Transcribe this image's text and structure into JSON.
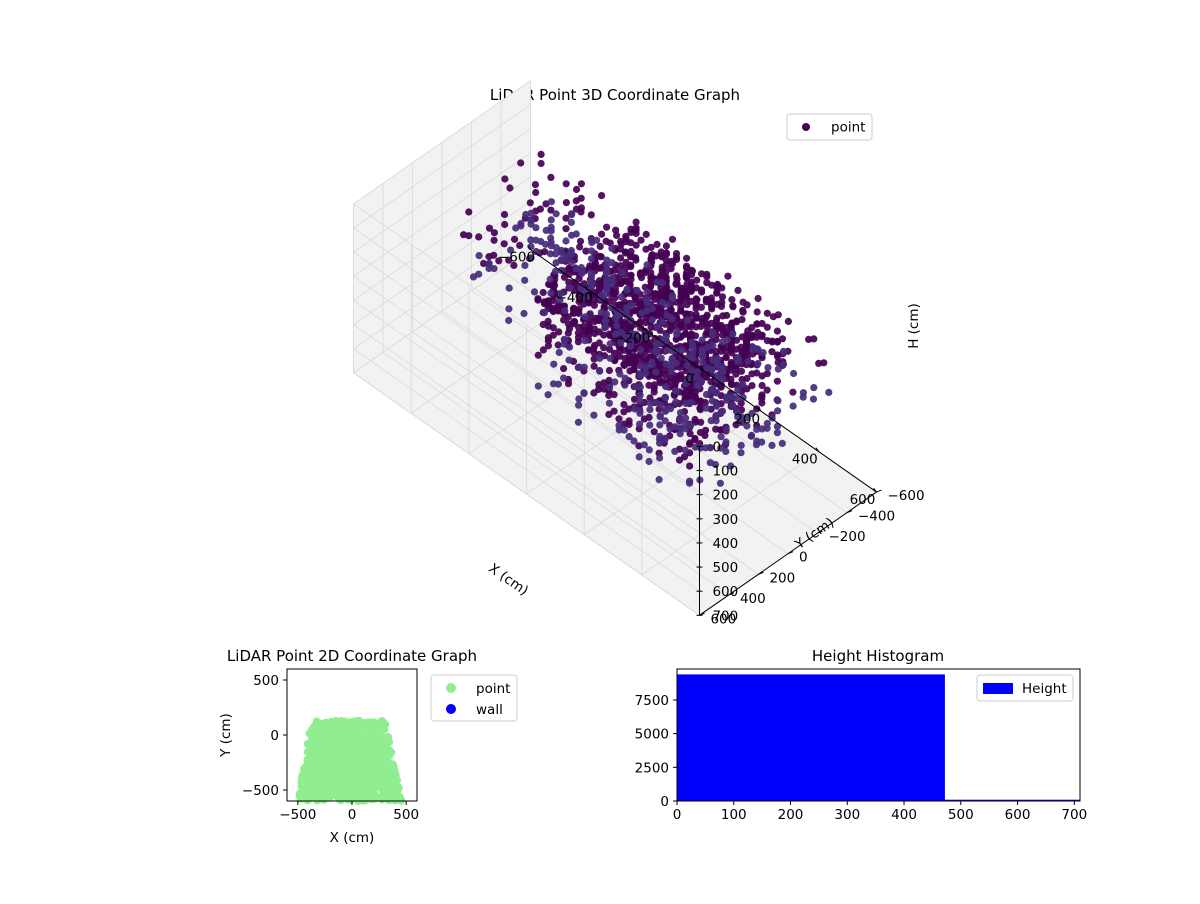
{
  "chart_data": [
    {
      "type": "scatter",
      "title": "LiDAR Point 3D Coordinate Graph",
      "projection": "3d",
      "xlabel": "X (cm)",
      "ylabel": "Y (cm)",
      "zlabel": "H (cm)",
      "xlim": [
        -600,
        600
      ],
      "ylim": [
        -600,
        600
      ],
      "zlim": [
        0,
        700
      ],
      "z_axis_inverted": true,
      "x_ticks": [
        "−600",
        "−400",
        "−200",
        "0",
        "200",
        "400",
        "600"
      ],
      "y_ticks": [
        "−600",
        "−400",
        "−200",
        "0",
        "200",
        "400",
        "600"
      ],
      "z_ticks": [
        "0",
        "100",
        "200",
        "300",
        "400",
        "500",
        "600",
        "700"
      ],
      "grid": true,
      "legend": {
        "position": "top-right",
        "entries": [
          {
            "label": "point",
            "color": "#440154"
          }
        ]
      },
      "series": [
        {
          "name": "point",
          "color": "#440154",
          "color_far": "#472d7b",
          "clusters": [
            {
              "shape": "box",
              "x_range": [
                -100,
                450
              ],
              "y_range": [
                -300,
                400
              ],
              "h_range": [
                0,
                120
              ],
              "count": 650
            },
            {
              "shape": "box",
              "x_range": [
                -100,
                450
              ],
              "y_range": [
                -300,
                400
              ],
              "h_range": [
                120,
                470
              ],
              "count": 450
            },
            {
              "shape": "box",
              "x_range": [
                -550,
                450
              ],
              "y_range": [
                -600,
                100
              ],
              "h_range": [
                200,
                470
              ],
              "count": 380
            },
            {
              "shape": "box",
              "x_range": [
                -600,
                200
              ],
              "y_range": [
                -600,
                -450
              ],
              "h_range": [
                470,
                700
              ],
              "count": 140
            }
          ]
        }
      ]
    },
    {
      "type": "scatter",
      "title": "LiDAR Point 2D Coordinate Graph",
      "xlabel": "X (cm)",
      "ylabel": "Y (cm)",
      "xlim": [
        -600,
        600
      ],
      "ylim": [
        -600,
        600
      ],
      "x_ticks": [
        -500,
        0,
        500
      ],
      "y_ticks": [
        -500,
        0,
        500
      ],
      "legend": {
        "position": "outside-right",
        "entries": [
          {
            "label": "point",
            "color": "#90ee90"
          },
          {
            "label": "wall",
            "color": "#0000ff"
          }
        ]
      },
      "series": [
        {
          "name": "point",
          "color": "#90ee90",
          "region": {
            "y_top": 130,
            "top_x_range": [
              -330,
              300
            ],
            "x_range_at_y0": [
              -400,
              330
            ],
            "bottom_x_range": [
              -500,
              460
            ],
            "y_bottom": -600
          },
          "count": 900
        },
        {
          "name": "wall",
          "color": "#0000ff",
          "points": []
        }
      ]
    },
    {
      "type": "bar",
      "title": "Height Histogram",
      "xlim": [
        0,
        710
      ],
      "ylim": [
        0,
        9800
      ],
      "x_ticks": [
        0,
        100,
        200,
        300,
        400,
        500,
        600,
        700
      ],
      "y_ticks": [
        "0",
        "2500",
        "5000",
        "7500"
      ],
      "legend": {
        "position": "top-right",
        "entries": [
          {
            "label": "Height",
            "color": "#0000ff"
          }
        ]
      },
      "bins": [
        {
          "x0": 0,
          "x1": 472,
          "count": 9400
        },
        {
          "x0": 472,
          "x1": 710,
          "count": 100
        }
      ]
    }
  ]
}
